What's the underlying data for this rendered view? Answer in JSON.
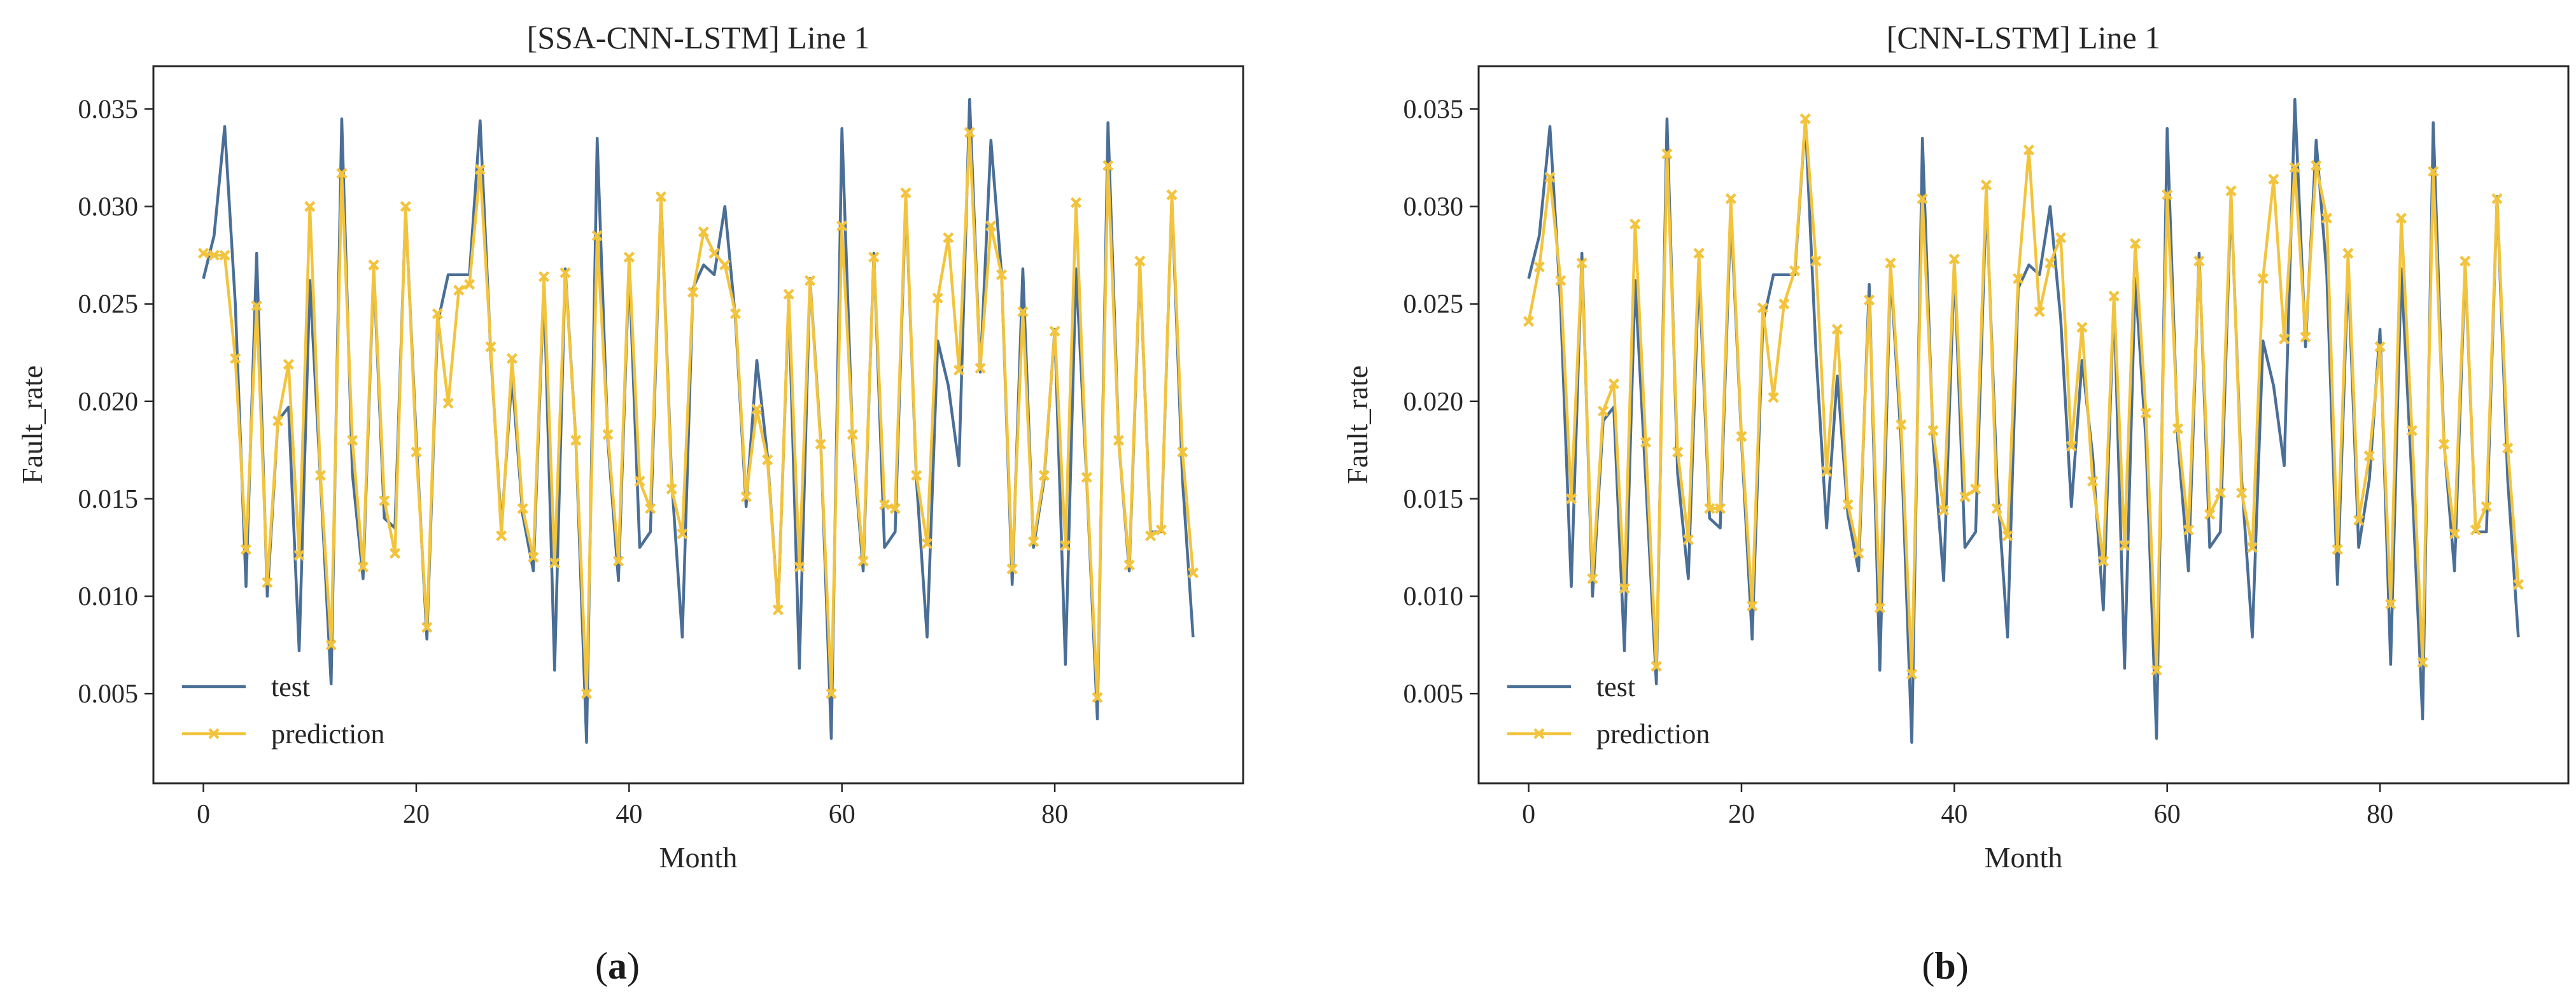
{
  "colors": {
    "test": "#4a6e96",
    "prediction": "#f2c43e",
    "axis": "#262626"
  },
  "chart_data": [
    {
      "type": "line",
      "title": "[SSA-CNN-LSTM] Line 1",
      "xlabel": "Month",
      "ylabel": "Fault_rate",
      "panel_label": "a",
      "xlim": [
        -4.7,
        97.7
      ],
      "ylim": [
        0.0004,
        0.0372
      ],
      "xticks": [
        0,
        20,
        40,
        60,
        80
      ],
      "yticks": [
        0.005,
        0.01,
        0.015,
        0.02,
        0.025,
        0.03,
        0.035
      ],
      "ytick_labels": [
        "0.005",
        "0.010",
        "0.015",
        "0.020",
        "0.025",
        "0.030",
        "0.035"
      ],
      "legend": [
        "test",
        "prediction"
      ],
      "series": [
        {
          "name": "test",
          "marker": "none",
          "values": [
            0.0263,
            0.0285,
            0.0341,
            0.025,
            0.0105,
            0.0276,
            0.01,
            0.019,
            0.0197,
            0.0072,
            0.0262,
            0.016,
            0.0055,
            0.0345,
            0.0163,
            0.0109,
            0.0268,
            0.014,
            0.0135,
            0.0298,
            0.018,
            0.0078,
            0.024,
            0.0265,
            0.0265,
            0.0265,
            0.0344,
            0.0225,
            0.0135,
            0.0213,
            0.0142,
            0.0113,
            0.026,
            0.0062,
            0.0268,
            0.018,
            0.0025,
            0.0335,
            0.018,
            0.0108,
            0.027,
            0.0125,
            0.0133,
            0.0305,
            0.016,
            0.0079,
            0.0258,
            0.027,
            0.0265,
            0.03,
            0.0242,
            0.0146,
            0.0221,
            0.0172,
            0.0093,
            0.0253,
            0.0063,
            0.0263,
            0.018,
            0.0027,
            0.034,
            0.018,
            0.0113,
            0.0276,
            0.0125,
            0.0133,
            0.0305,
            0.016,
            0.0079,
            0.0231,
            0.0208,
            0.0167,
            0.0355,
            0.0215,
            0.0334,
            0.0265,
            0.0106,
            0.0268,
            0.0125,
            0.016,
            0.0237,
            0.0065,
            0.0268,
            0.016,
            0.0037,
            0.0343,
            0.018,
            0.0113,
            0.027,
            0.0133,
            0.0133,
            0.0305,
            0.016,
            0.0079
          ]
        },
        {
          "name": "prediction",
          "marker": "x",
          "values": [
            0.0276,
            0.0275,
            0.0275,
            0.0222,
            0.0124,
            0.0249,
            0.0107,
            0.019,
            0.0219,
            0.0121,
            0.03,
            0.0162,
            0.0075,
            0.0317,
            0.018,
            0.0115,
            0.027,
            0.0149,
            0.0122,
            0.03,
            0.0174,
            0.0084,
            0.0245,
            0.0199,
            0.0257,
            0.026,
            0.0319,
            0.0228,
            0.0131,
            0.0222,
            0.0145,
            0.012,
            0.0264,
            0.0117,
            0.0266,
            0.018,
            0.005,
            0.0285,
            0.0183,
            0.0118,
            0.0274,
            0.0159,
            0.0145,
            0.0305,
            0.0155,
            0.0132,
            0.0256,
            0.0287,
            0.0276,
            0.027,
            0.0245,
            0.0151,
            0.0196,
            0.017,
            0.0093,
            0.0255,
            0.0115,
            0.0262,
            0.0178,
            0.005,
            0.029,
            0.0183,
            0.0118,
            0.0274,
            0.0147,
            0.0145,
            0.0307,
            0.0162,
            0.0127,
            0.0253,
            0.0284,
            0.0216,
            0.0338,
            0.0217,
            0.029,
            0.0265,
            0.0114,
            0.0246,
            0.0128,
            0.0162,
            0.0236,
            0.0126,
            0.0302,
            0.0161,
            0.0048,
            0.0321,
            0.018,
            0.0116,
            0.0272,
            0.0131,
            0.0134,
            0.0306,
            0.0174,
            0.0112
          ]
        }
      ]
    },
    {
      "type": "line",
      "title": "[CNN-LSTM] Line 1",
      "xlabel": "Month",
      "ylabel": "Fault_rate",
      "panel_label": "b",
      "xlim": [
        -4.7,
        97.7
      ],
      "ylim": [
        0.0004,
        0.0372
      ],
      "xticks": [
        0,
        20,
        40,
        60,
        80
      ],
      "yticks": [
        0.005,
        0.01,
        0.015,
        0.02,
        0.025,
        0.03,
        0.035
      ],
      "ytick_labels": [
        "0.005",
        "0.010",
        "0.015",
        "0.020",
        "0.025",
        "0.030",
        "0.035"
      ],
      "legend": [
        "test",
        "prediction"
      ],
      "series": [
        {
          "name": "test",
          "marker": "none",
          "values": [
            0.0263,
            0.0285,
            0.0341,
            0.025,
            0.0105,
            0.0276,
            0.01,
            0.019,
            0.0197,
            0.0072,
            0.0262,
            0.016,
            0.0055,
            0.0345,
            0.0163,
            0.0109,
            0.0268,
            0.014,
            0.0135,
            0.0298,
            0.018,
            0.0078,
            0.024,
            0.0265,
            0.0265,
            0.0265,
            0.0344,
            0.0225,
            0.0135,
            0.0213,
            0.0142,
            0.0113,
            0.026,
            0.0062,
            0.0268,
            0.018,
            0.0025,
            0.0335,
            0.018,
            0.0108,
            0.027,
            0.0125,
            0.0133,
            0.0305,
            0.016,
            0.0079,
            0.0258,
            0.027,
            0.0265,
            0.03,
            0.0242,
            0.0146,
            0.0221,
            0.0172,
            0.0093,
            0.0253,
            0.0063,
            0.0263,
            0.018,
            0.0027,
            0.034,
            0.018,
            0.0113,
            0.0276,
            0.0125,
            0.0133,
            0.0305,
            0.016,
            0.0079,
            0.0231,
            0.0208,
            0.0167,
            0.0355,
            0.0228,
            0.0334,
            0.0265,
            0.0106,
            0.0268,
            0.0125,
            0.016,
            0.0237,
            0.0065,
            0.0268,
            0.016,
            0.0037,
            0.0343,
            0.018,
            0.0113,
            0.027,
            0.0133,
            0.0133,
            0.0305,
            0.016,
            0.0079
          ]
        },
        {
          "name": "prediction",
          "marker": "x",
          "values": [
            0.0241,
            0.0269,
            0.0315,
            0.0262,
            0.015,
            0.0271,
            0.0109,
            0.0195,
            0.0209,
            0.0104,
            0.0291,
            0.0179,
            0.0064,
            0.0327,
            0.0174,
            0.0129,
            0.0276,
            0.0145,
            0.0145,
            0.0304,
            0.0182,
            0.0095,
            0.0248,
            0.0202,
            0.025,
            0.0267,
            0.0345,
            0.0272,
            0.0164,
            0.0237,
            0.0147,
            0.0122,
            0.0252,
            0.0094,
            0.0271,
            0.0188,
            0.006,
            0.0304,
            0.0185,
            0.0144,
            0.0273,
            0.0151,
            0.0155,
            0.0311,
            0.0145,
            0.0131,
            0.0263,
            0.0329,
            0.0246,
            0.0271,
            0.0284,
            0.0177,
            0.0238,
            0.0159,
            0.0118,
            0.0254,
            0.0126,
            0.0281,
            0.0194,
            0.0062,
            0.0306,
            0.0186,
            0.0134,
            0.0272,
            0.0142,
            0.0153,
            0.0308,
            0.0153,
            0.0125,
            0.0263,
            0.0314,
            0.0232,
            0.032,
            0.0233,
            0.0321,
            0.0294,
            0.0124,
            0.0276,
            0.0139,
            0.0172,
            0.0228,
            0.0096,
            0.0294,
            0.0185,
            0.0066,
            0.0318,
            0.0178,
            0.0132,
            0.0272,
            0.0134,
            0.0146,
            0.0304,
            0.0176,
            0.0106
          ]
        }
      ]
    }
  ]
}
